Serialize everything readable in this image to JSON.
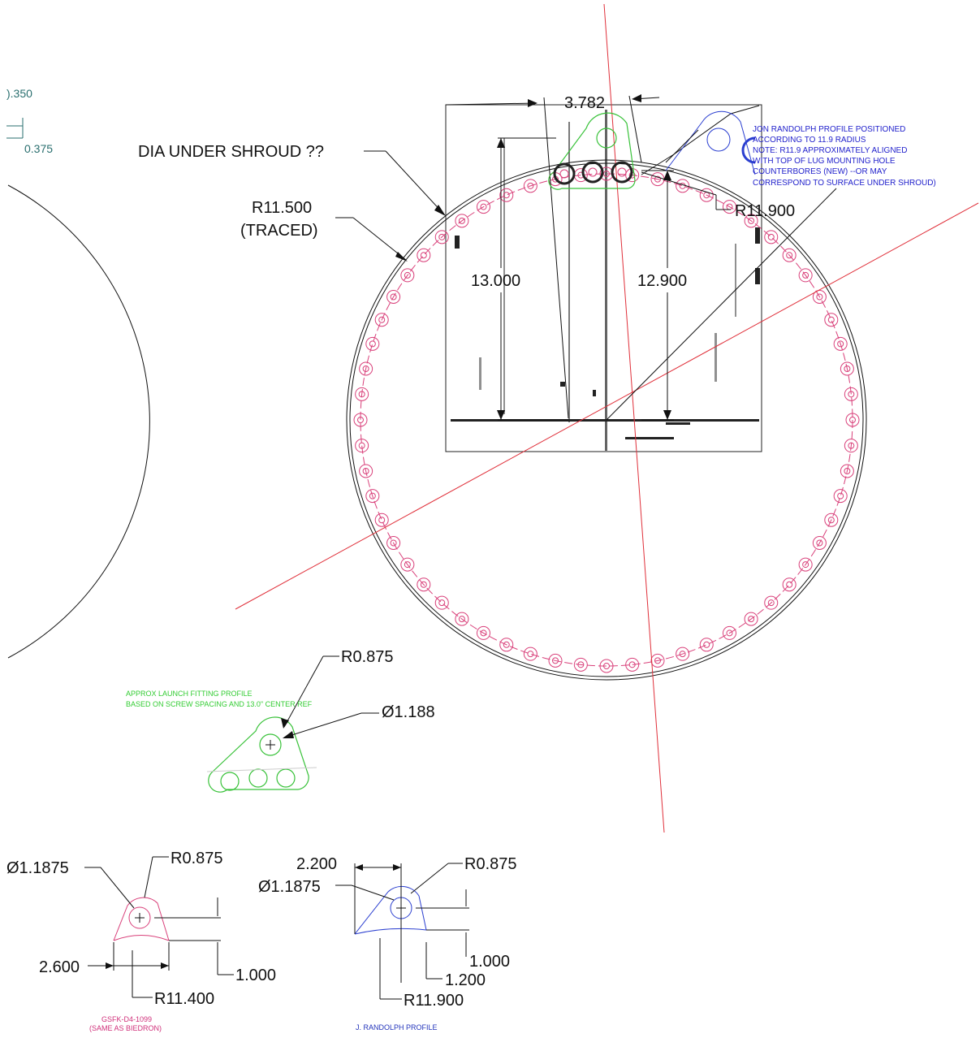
{
  "colors": {
    "red": "#e0303a",
    "pink": "#d9407a",
    "green": "#39c23a",
    "blue": "#2b3fd0",
    "teal": "#2a6f6f"
  },
  "top_left": {
    "dim_a": ").350",
    "dim_b": "0.375"
  },
  "main": {
    "dia_under_shroud": "DIA UNDER SHROUD ??",
    "r11500": "R11.500",
    "traced": "(TRACED)",
    "dim_3782": "3.782",
    "dim_13000": "13.000",
    "dim_12900": "12.900",
    "r11900": "R11.900",
    "jon_note": [
      "JON RANDOLPH PROFILE POSITIONED",
      "ACCORDING TO 11.9 RADIUS",
      "NOTE:  R11.9 APPROXIMATELY ALIGNED",
      "WITH TOP OF LUG MOUNTING HOLE",
      "COUNTERBORES (NEW) --OR MAY",
      "CORRESPOND TO SURFACE UNDER SHROUD)"
    ]
  },
  "green_profile": {
    "r0875": "R0.875",
    "note_line1": "APPROX LAUNCH FITTING PROFILE",
    "note_line2": "BASED ON SCREW SPACING AND 13.0\" CENTER REF",
    "dia1188": "Ø1.188"
  },
  "pink_profile": {
    "dia": "Ø1.1875",
    "r0875": "R0.875",
    "dim_2600": "2.600",
    "dim_1000": "1.000",
    "r11400": "R11.400",
    "caption1": "GSFK-D4-1099",
    "caption2": "(SAME AS BIEDRON)"
  },
  "blue_profile": {
    "dim_2200": "2.200",
    "dia": "Ø1.1875",
    "r0875": "R0.875",
    "dim_1000": "1.000",
    "dim_1200": "1.200",
    "r11900": "R11.900",
    "caption": "J. RANDOLPH PROFILE"
  }
}
